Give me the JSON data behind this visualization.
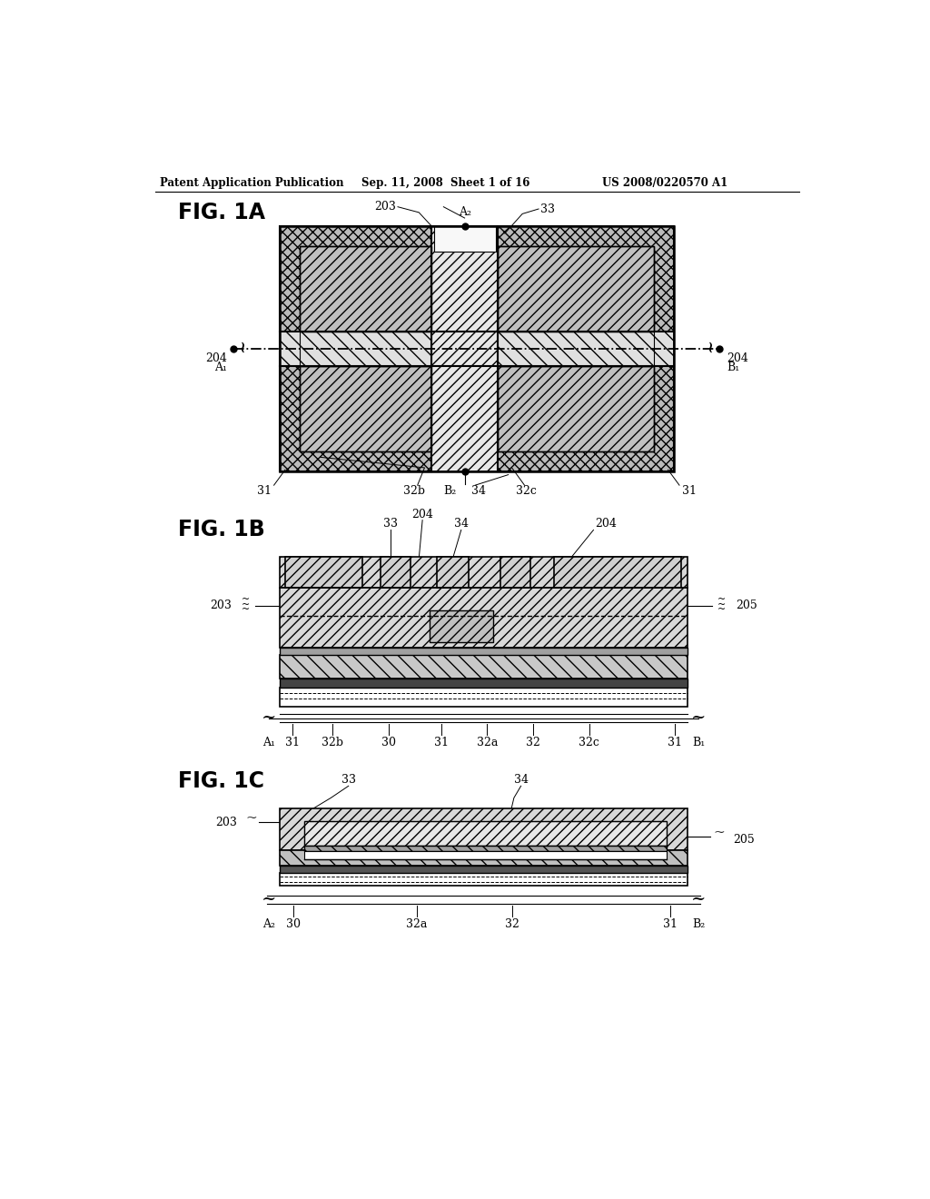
{
  "bg_color": "#ffffff",
  "header_text": "Patent Application Publication",
  "header_date": "Sep. 11, 2008  Sheet 1 of 16",
  "header_patent": "US 2008/0220570 A1"
}
